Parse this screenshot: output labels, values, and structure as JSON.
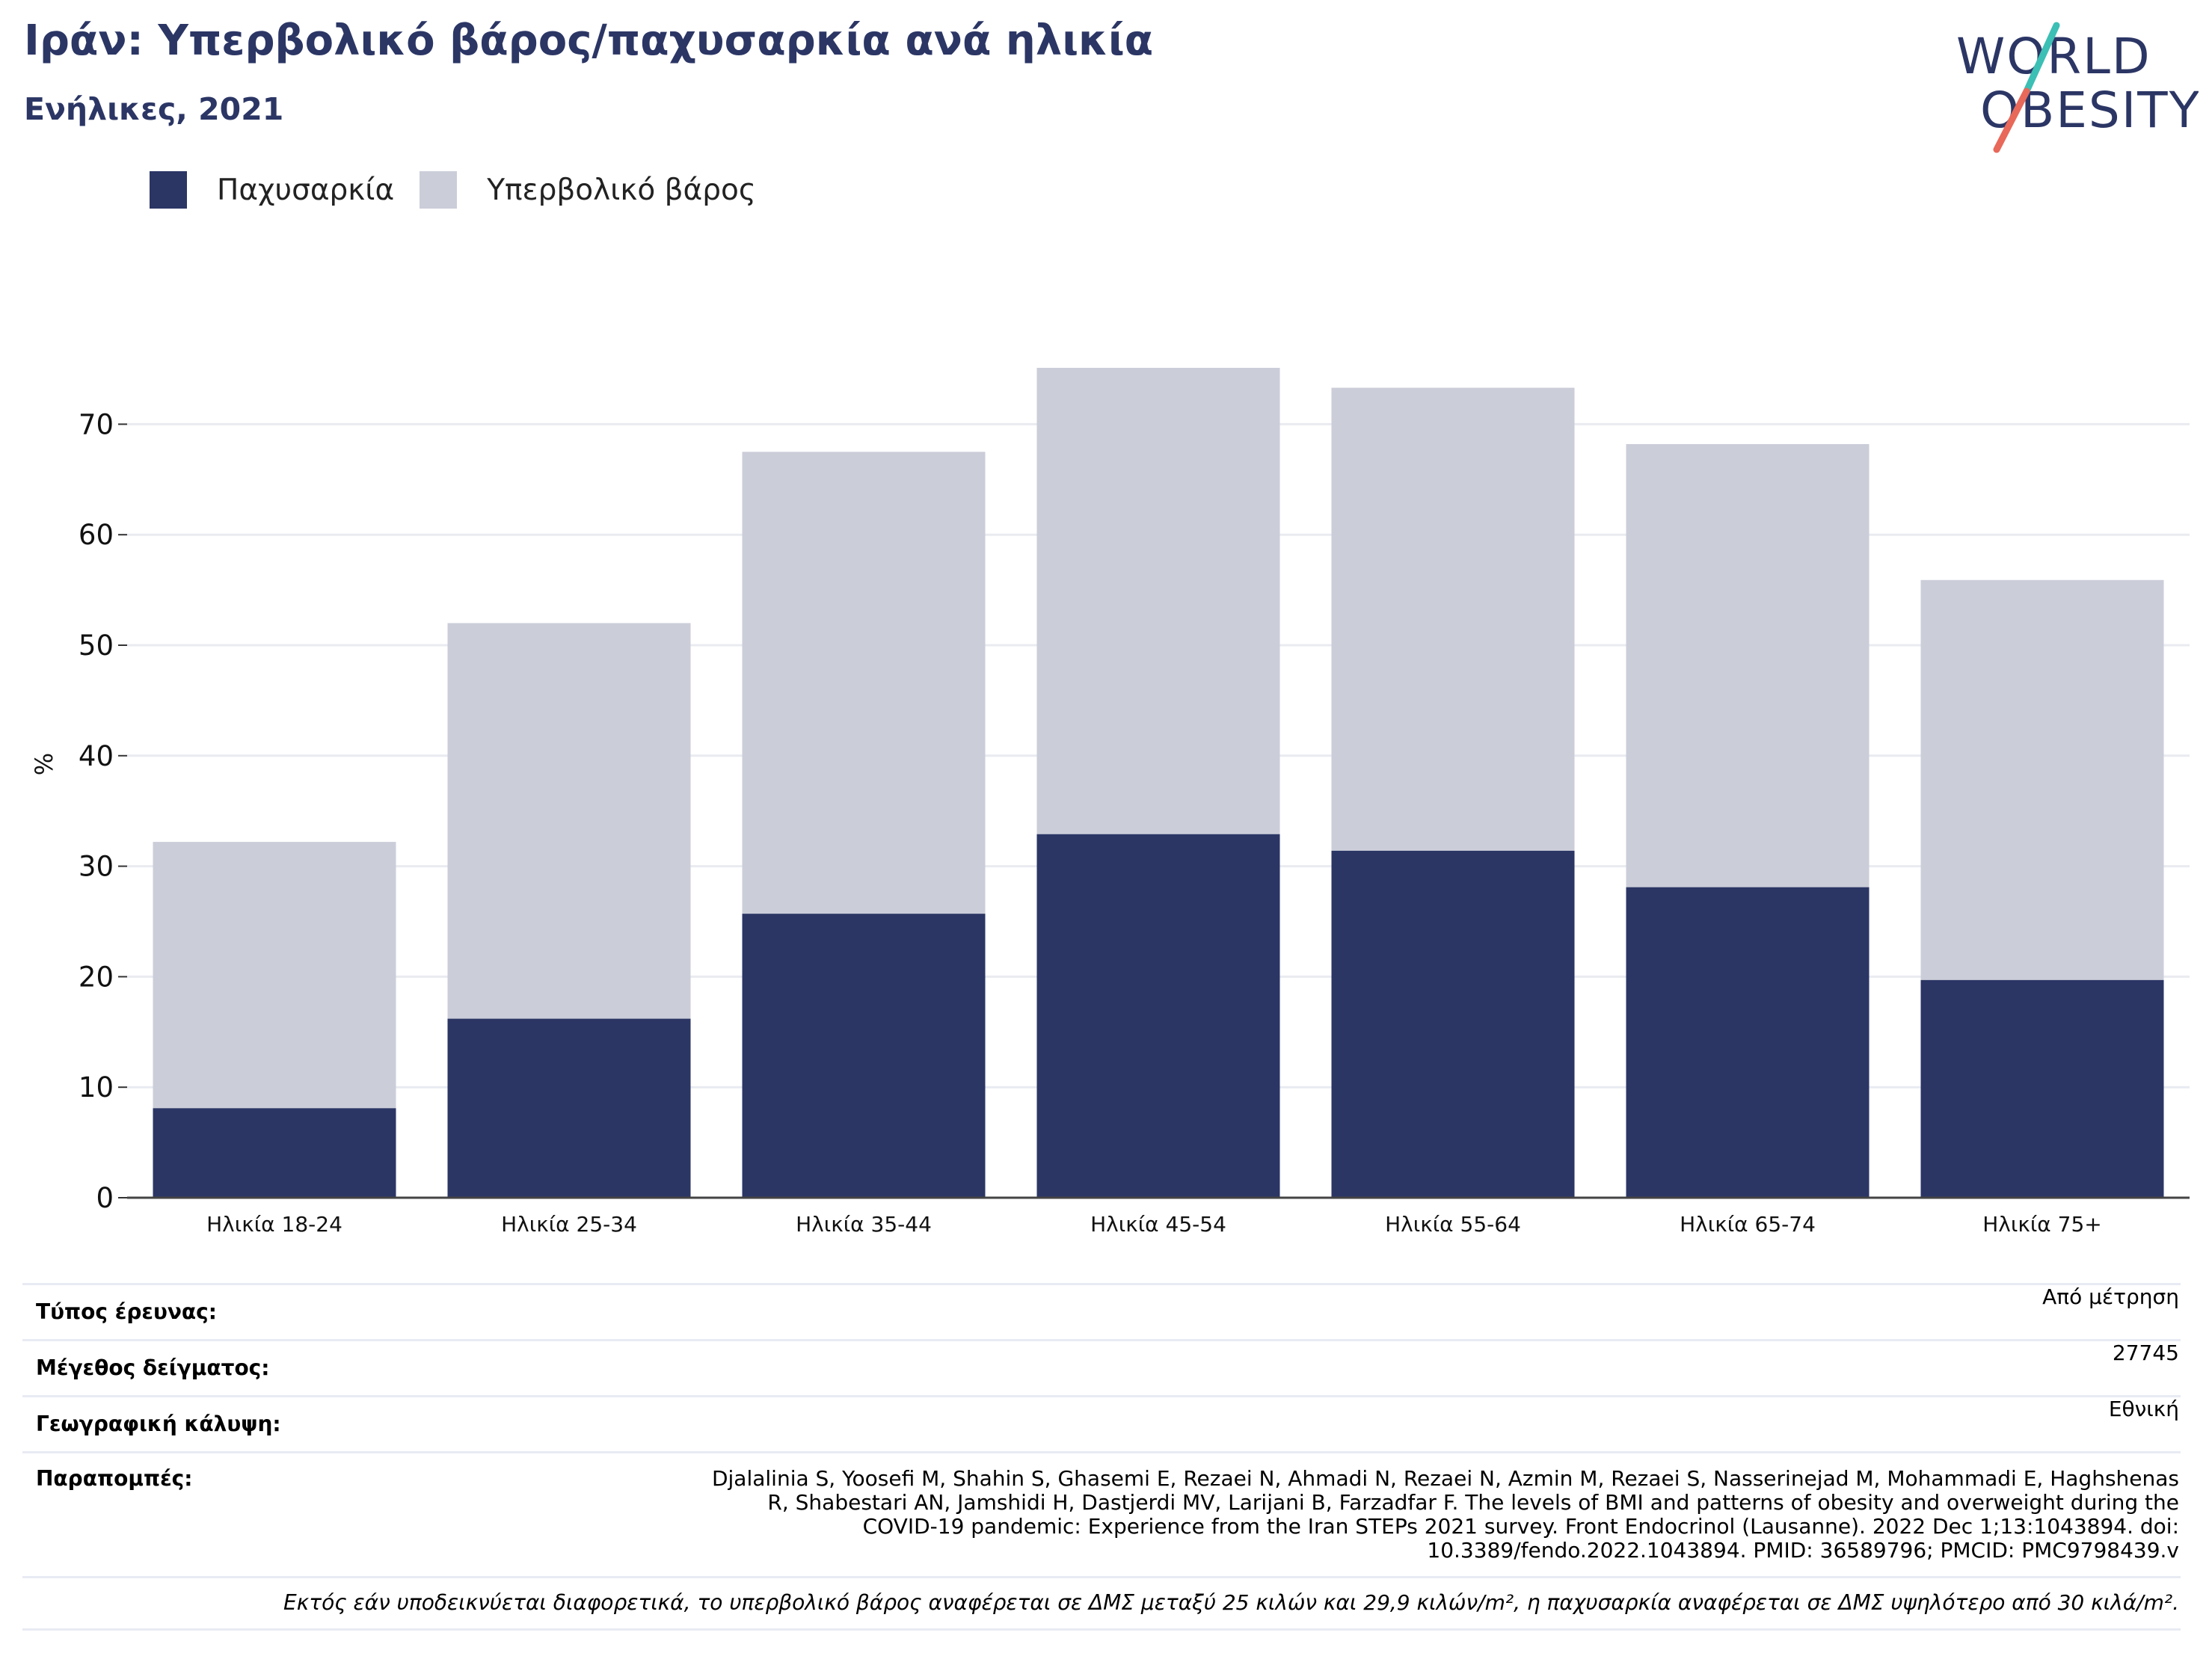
{
  "header": {
    "title": "Ιράν: Υπερβολικό βάρος/παχυσαρκία ανά ηλικία",
    "subtitle": "Ενήλικες, 2021"
  },
  "logo": {
    "line1": "WORLD",
    "line2": "OBESITY"
  },
  "colors": {
    "obesity": "#2b3665",
    "overweight": "#cbcdd9",
    "title": "#2b3665",
    "logo_slash_top": "#3cbfb4",
    "logo_slash_bottom": "#e8685a"
  },
  "legend": [
    {
      "label": "Παχυσαρκία",
      "color": "#2b3665"
    },
    {
      "label": "Υπερβολικό βάρος",
      "color": "#cbcdd9"
    }
  ],
  "chart_data": {
    "type": "bar",
    "stacked": true,
    "categories": [
      "Ηλικία 18-24",
      "Ηλικία 25-34",
      "Ηλικία 35-44",
      "Ηλικία 45-54",
      "Ηλικία 55-64",
      "Ηλικία 65-74",
      "Ηλικία 75+"
    ],
    "series": [
      {
        "name": "Παχυσαρκία",
        "values": [
          8.1,
          16.2,
          25.7,
          32.9,
          31.4,
          28.1,
          19.7
        ]
      },
      {
        "name": "Υπερβολικό βάρος",
        "values": [
          24.1,
          35.8,
          41.8,
          42.2,
          41.9,
          40.1,
          36.2
        ]
      }
    ],
    "ylabel": "%",
    "yticks": [
      0,
      10,
      20,
      30,
      40,
      50,
      60,
      70
    ],
    "ylim": [
      0,
      80
    ],
    "grid": true,
    "legend_position": "top-left"
  },
  "info": {
    "rows": [
      {
        "label": "Τύπος έρευνας:",
        "value": "Από μέτρηση"
      },
      {
        "label": "Μέγεθος δείγματος:",
        "value": "27745"
      },
      {
        "label": "Γεωγραφική κάλυψη:",
        "value": "Εθνική"
      }
    ],
    "references_label": "Παραπομπές:",
    "references_lines": [
      "Djalalinia S, Yoosefi M, Shahin S, Ghasemi E, Rezaei N, Ahmadi N, Rezaei N, Azmin M, Rezaei S, Nasserinejad M, Mohammadi E, Haghshenas",
      "R, Shabestari AN, Jamshidi H, Dastjerdi MV, Larijani B, Farzadfar F. The levels of BMI and patterns of obesity and overweight during the",
      "COVID-19 pandemic: Experience from the Iran STEPs 2021 survey. Front Endocrinol (Lausanne). 2022 Dec 1;13:1043894. doi:",
      "10.3389/fendo.2022.1043894. PMID: 36589796; PMCID: PMC9798439.v"
    ],
    "footnote": "Εκτός εάν υποδεικνύεται διαφορετικά, το υπερβολικό βάρος αναφέρεται σε ΔΜΣ μεταξύ 25 κιλών και 29,9 κιλών/m², η παχυσαρκία αναφέρεται σε ΔΜΣ υψηλότερο από 30 κιλά/m²."
  }
}
